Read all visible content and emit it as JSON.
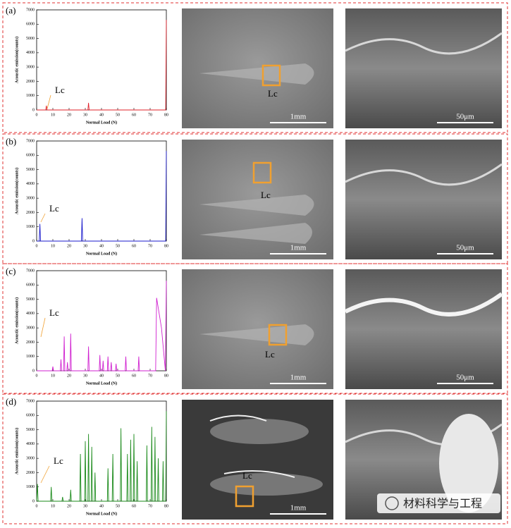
{
  "panels": [
    {
      "label": "(a)",
      "sem_low": {
        "annotation": "Lc",
        "scale": "1mm"
      },
      "sem_high": {
        "scale": "50μm"
      }
    },
    {
      "label": "(b)",
      "sem_low": {
        "annotation": "Lc",
        "scale": "1mm"
      },
      "sem_high": {
        "scale": "50μm"
      }
    },
    {
      "label": "(c)",
      "sem_low": {
        "annotation": "Lc",
        "scale": "1mm"
      },
      "sem_high": {
        "scale": "50μm"
      }
    },
    {
      "label": "(d)",
      "sem_low": {
        "annotation": "Lc",
        "scale": "1mm"
      },
      "sem_high": {}
    }
  ],
  "chart_data": [
    {
      "type": "line",
      "xlabel": "Normal Load (N)",
      "ylabel": "Acoustic emission(counts)",
      "annotation": "Lc",
      "color": "#e0202a",
      "xlim": [
        0,
        80
      ],
      "ylim": [
        0,
        7000
      ],
      "xticks": [
        0,
        10,
        20,
        30,
        40,
        50,
        60,
        70,
        80
      ],
      "yticks": [
        0,
        1000,
        2000,
        3000,
        4000,
        5000,
        6000,
        7000
      ],
      "x": [
        0,
        5.6,
        6,
        6.4,
        31.6,
        32,
        32.4,
        79.6,
        80
      ],
      "values": [
        0,
        0,
        300,
        0,
        0,
        500,
        0,
        0,
        6300
      ]
    },
    {
      "type": "line",
      "xlabel": "Normal Load (N)",
      "ylabel": "Acoustic emission(counts)",
      "annotation": "Lc",
      "color": "#1a1acc",
      "xlim": [
        0,
        80
      ],
      "ylim": [
        0,
        7000
      ],
      "xticks": [
        0,
        10,
        20,
        30,
        40,
        50,
        60,
        70,
        80
      ],
      "yticks": [
        0,
        1000,
        2000,
        3000,
        4000,
        5000,
        6000,
        7000
      ],
      "x": [
        0,
        1.6,
        2,
        2.4,
        27.6,
        28,
        28.4,
        79.6,
        80
      ],
      "values": [
        0,
        0,
        1200,
        0,
        0,
        1600,
        0,
        0,
        6300
      ]
    },
    {
      "type": "line",
      "xlabel": "Normal Load (N)",
      "ylabel": "Acoustic emission(counts)",
      "annotation": "Lc",
      "color": "#d020d0",
      "xlim": [
        0,
        80
      ],
      "ylim": [
        0,
        7000
      ],
      "xticks": [
        0,
        10,
        20,
        30,
        40,
        50,
        60,
        70,
        80
      ],
      "yticks": [
        0,
        1000,
        2000,
        3000,
        4000,
        5000,
        6000,
        7000
      ],
      "x": [
        0,
        9.6,
        10,
        10.4,
        14.6,
        15,
        15.4,
        16.6,
        17,
        17.4,
        18.6,
        19,
        19.4,
        20.6,
        21,
        21.4,
        31.6,
        32,
        32.4,
        38.6,
        39,
        39.4,
        40.6,
        41,
        41.4,
        43.6,
        44,
        44.4,
        45.6,
        46,
        46.4,
        48.6,
        49,
        49.4,
        54.6,
        55,
        55.4,
        62.6,
        63,
        63.4,
        73.4,
        74,
        77,
        79.4,
        80
      ],
      "values": [
        0,
        0,
        300,
        0,
        0,
        800,
        0,
        0,
        2400,
        0,
        0,
        600,
        0,
        0,
        2600,
        0,
        0,
        1700,
        0,
        0,
        1100,
        0,
        0,
        700,
        0,
        0,
        1000,
        0,
        0,
        600,
        0,
        0,
        500,
        0,
        0,
        1000,
        0,
        0,
        1000,
        0,
        0,
        5100,
        3000,
        0,
        6300
      ]
    },
    {
      "type": "line",
      "xlabel": "Normal Load (N)",
      "ylabel": "Acoustic emission(counts)",
      "annotation": "Lc",
      "color": "#1a8a1a",
      "xlim": [
        0,
        80
      ],
      "ylim": [
        0,
        7000
      ],
      "xticks": [
        0,
        10,
        20,
        30,
        40,
        50,
        60,
        70,
        80
      ],
      "yticks": [
        0,
        1000,
        2000,
        3000,
        4000,
        5000,
        6000,
        7000
      ],
      "x": [
        0,
        0.5,
        0.9,
        8.6,
        9,
        9.4,
        15.6,
        16,
        16.4,
        20.6,
        21,
        21.4,
        26.6,
        27,
        27.4,
        29.6,
        30,
        30.4,
        31.6,
        32,
        32.4,
        33.6,
        34,
        34.4,
        35.6,
        36,
        36.4,
        43.6,
        44,
        44.4,
        46.6,
        47,
        47.4,
        51.6,
        52,
        52.4,
        55.6,
        56,
        56.4,
        57.6,
        58,
        58.4,
        59.6,
        60,
        60.4,
        61.6,
        62,
        62.4,
        67.6,
        68,
        68.4,
        70.6,
        71,
        71.4,
        72.6,
        73,
        73.4,
        74.6,
        75,
        75.4,
        77.6,
        78,
        78.4,
        79.6,
        80
      ],
      "values": [
        0,
        1200,
        0,
        0,
        1000,
        0,
        0,
        300,
        0,
        0,
        800,
        0,
        0,
        3300,
        0,
        0,
        4200,
        0,
        0,
        4700,
        0,
        0,
        3800,
        0,
        0,
        2000,
        0,
        0,
        2300,
        0,
        0,
        3300,
        0,
        0,
        5100,
        0,
        0,
        3300,
        0,
        0,
        4300,
        0,
        0,
        4700,
        0,
        0,
        2800,
        0,
        0,
        3900,
        0,
        0,
        5200,
        0,
        0,
        4500,
        0,
        0,
        3000,
        0,
        0,
        2800,
        0,
        0,
        6300
      ]
    }
  ],
  "watermark": "材料科学与工程"
}
